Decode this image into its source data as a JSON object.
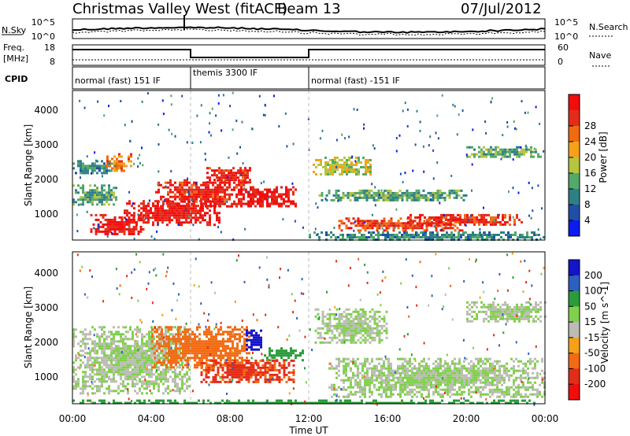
{
  "header": {
    "station": "Christmas Valley West (fitACF)",
    "beam": "Beam 13",
    "date": "07/Jul/2012"
  },
  "top_panel": {
    "left_label": "N.Sky",
    "right_label": "N.Search",
    "yticks_left": [
      "10^5",
      "10^0"
    ],
    "yticks_right": [
      "10^5",
      "10^0"
    ]
  },
  "freq_panel": {
    "left_label_1": "Freq.",
    "left_label_2": "[MHz]",
    "right_label": "Nave",
    "yticks_left": [
      "18",
      "8"
    ],
    "yticks_right": [
      "60",
      "0"
    ]
  },
  "cpid_panel": {
    "label": "CPID",
    "modes": [
      {
        "name": "normal (fast) 151 IF",
        "start_hour": 0,
        "end_hour": 6
      },
      {
        "name": "themis 3300 IF",
        "start_hour": 6,
        "end_hour": 12
      },
      {
        "name": "normal (fast) -151 IF",
        "start_hour": 12,
        "end_hour": 24
      }
    ]
  },
  "x_axis": {
    "label": "Time UT",
    "ticks": [
      "00:00",
      "04:00",
      "08:00",
      "12:00",
      "16:00",
      "20:00",
      "00:00"
    ]
  },
  "chart_data": [
    {
      "type": "heatmap",
      "ylabel": "Slant Range [km]",
      "yticks": [
        "1000",
        "2000",
        "3000",
        "4000"
      ],
      "ylim": [
        200,
        4500
      ],
      "xlim_hours": [
        0,
        24
      ],
      "colorbar": {
        "label": "Power [dB]",
        "ticks": [
          "4",
          "8",
          "12",
          "16",
          "20",
          "24",
          "28"
        ],
        "colors": [
          "#0a1cf0",
          "#1f4fa6",
          "#2f7f86",
          "#54a86a",
          "#b6c440",
          "#f5a21a",
          "#f06a12",
          "#e42c1a",
          "#f20d0d"
        ]
      },
      "regions": [
        {
          "t0": 2.6,
          "t1": 7.5,
          "r0": 650,
          "r1": 1350,
          "value": 29
        },
        {
          "t0": 4.2,
          "t1": 8.8,
          "r0": 1150,
          "r1": 1950,
          "value": 28
        },
        {
          "t0": 6.8,
          "t1": 9.0,
          "r0": 1850,
          "r1": 2300,
          "value": 28
        },
        {
          "t0": 8.4,
          "t1": 11.3,
          "r0": 1200,
          "r1": 1750,
          "value": 29
        },
        {
          "t0": 0.9,
          "t1": 3.6,
          "r0": 350,
          "r1": 950,
          "value": 29
        },
        {
          "t0": 1.6,
          "t1": 3.0,
          "r0": 2200,
          "r1": 2700,
          "value": 22
        },
        {
          "t0": 12.2,
          "t1": 15.2,
          "r0": 2100,
          "r1": 2600,
          "value": 16
        },
        {
          "t0": 13.5,
          "t1": 19.8,
          "r0": 500,
          "r1": 850,
          "value": 26
        },
        {
          "t0": 17.0,
          "t1": 22.8,
          "r0": 650,
          "r1": 950,
          "value": 27
        },
        {
          "t0": 12.5,
          "t1": 20.0,
          "r0": 1350,
          "r1": 1650,
          "value": 12
        },
        {
          "t0": 12.0,
          "t1": 24.0,
          "r0": 200,
          "r1": 450,
          "value": 10
        },
        {
          "t0": 0.0,
          "t1": 2.2,
          "r0": 1200,
          "r1": 1800,
          "value": 12
        },
        {
          "t0": 20.0,
          "t1": 23.8,
          "r0": 2600,
          "r1": 2900,
          "value": 13
        },
        {
          "t0": 0.0,
          "t1": 2.0,
          "r0": 2100,
          "r1": 2500,
          "value": 10
        }
      ]
    },
    {
      "type": "heatmap",
      "ylabel": "Slant Range [km]",
      "yticks": [
        "1000",
        "2000",
        "3000",
        "4000"
      ],
      "ylim": [
        200,
        4500
      ],
      "xlim_hours": [
        0,
        24
      ],
      "colorbar": {
        "label": "Velocity [m s^-1]",
        "ticks": [
          "200",
          "100",
          "50",
          "15",
          "-15",
          "-50",
          "-100",
          "-200"
        ],
        "colors": [
          "#1414c8",
          "#2d5fc0",
          "#2a9c3a",
          "#7fd04a",
          "#bcbcb4",
          "#f5a21a",
          "#f26a12",
          "#e42c1a",
          "#f20d0d"
        ]
      },
      "regions": [
        {
          "t0": 0.0,
          "t1": 6.0,
          "r0": 500,
          "r1": 2400,
          "value": 0
        },
        {
          "t0": 4.0,
          "t1": 9.0,
          "r0": 1200,
          "r1": 2400,
          "value": -60
        },
        {
          "t0": 8.8,
          "t1": 9.6,
          "r0": 1700,
          "r1": 2300,
          "value": 220
        },
        {
          "t0": 9.6,
          "t1": 11.7,
          "r0": 1450,
          "r1": 1800,
          "value": 60
        },
        {
          "t0": 6.5,
          "t1": 11.2,
          "r0": 800,
          "r1": 1450,
          "value": -80
        },
        {
          "t0": 12.3,
          "t1": 16.0,
          "r0": 1900,
          "r1": 2900,
          "value": 0
        },
        {
          "t0": 13.0,
          "t1": 24.0,
          "r0": 400,
          "r1": 1500,
          "value": 0
        },
        {
          "t0": 20.0,
          "t1": 24.0,
          "r0": 2500,
          "r1": 3100,
          "value": 0
        },
        {
          "t0": 0.0,
          "t1": 24.0,
          "r0": 200,
          "r1": 320,
          "value": 40
        }
      ]
    }
  ]
}
